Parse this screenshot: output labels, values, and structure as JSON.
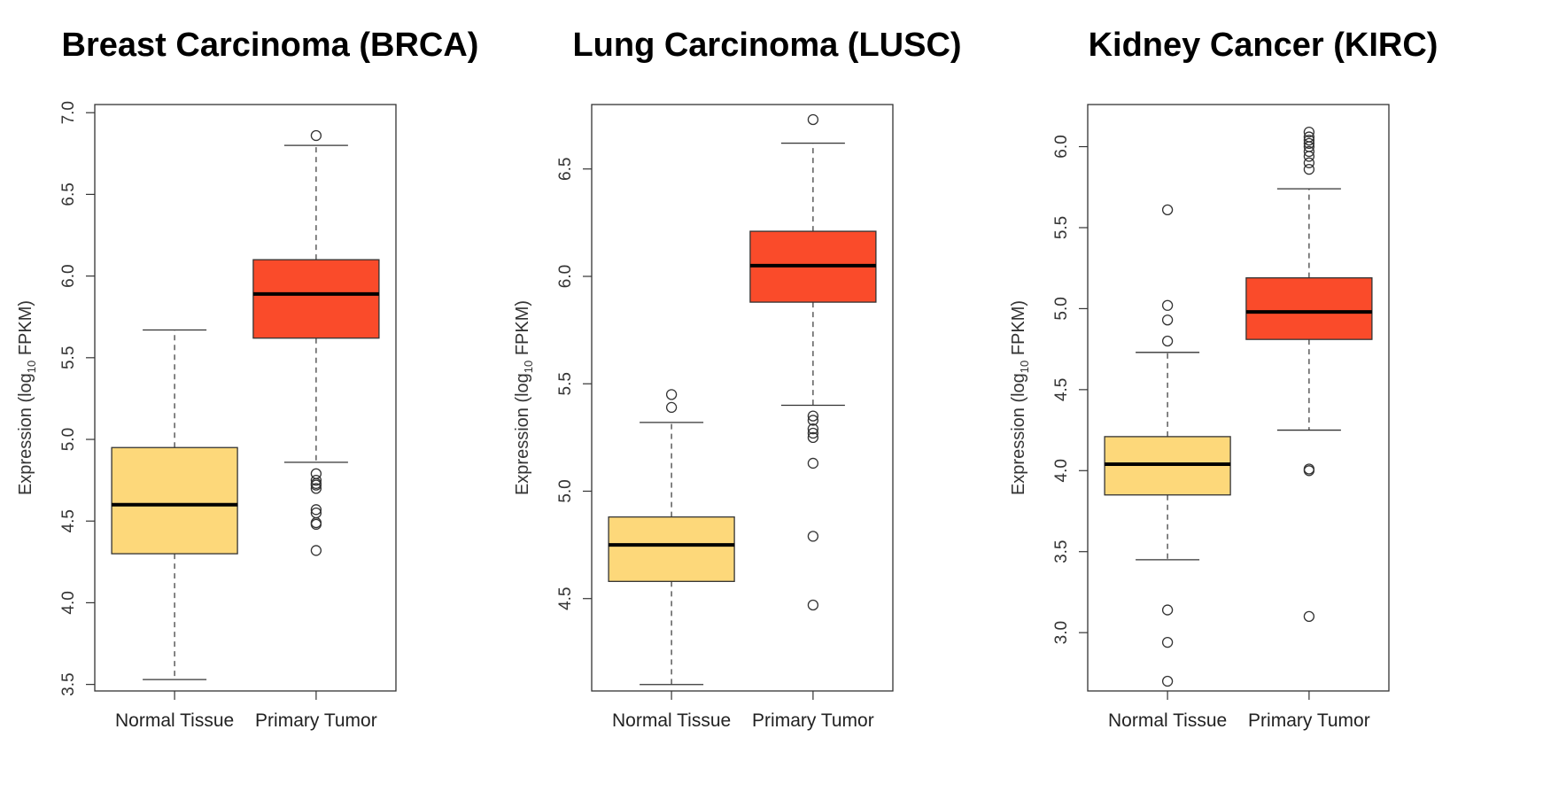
{
  "chart_data": [
    {
      "type": "boxplot",
      "title": "Breast Carcinoma (BRCA)",
      "ylabel_main": "Expression (log",
      "ylabel_sub": "10",
      "ylabel_tail": " FPKM)",
      "categories": [
        "Normal Tissue",
        "Primary Tumor"
      ],
      "ylim": [
        3.46,
        7.05
      ],
      "ticks": [
        3.5,
        4.0,
        4.5,
        5.0,
        5.5,
        6.0,
        6.5,
        7.0
      ],
      "tick_labels": [
        "3.5",
        "4.0",
        "4.5",
        "5.0",
        "5.5",
        "6.0",
        "6.5",
        "7.0"
      ],
      "boxes": [
        {
          "name": "Normal Tissue",
          "whisker_low": 3.53,
          "q1": 4.3,
          "median": 4.6,
          "q3": 4.95,
          "whisker_high": 5.67,
          "outliers": [],
          "color": "#FDD87A"
        },
        {
          "name": "Primary Tumor",
          "whisker_low": 4.86,
          "q1": 5.62,
          "median": 5.89,
          "q3": 6.1,
          "whisker_high": 6.8,
          "outliers": [
            6.86,
            4.79,
            4.75,
            4.73,
            4.72,
            4.7,
            4.57,
            4.55,
            4.49,
            4.48,
            4.32
          ],
          "color": "#FA4B2A"
        }
      ]
    },
    {
      "type": "boxplot",
      "title": "Lung Carcinoma (LUSC)",
      "ylabel_main": "Expression (log",
      "ylabel_sub": "10",
      "ylabel_tail": " FPKM)",
      "categories": [
        "Normal Tissue",
        "Primary Tumor"
      ],
      "ylim": [
        4.07,
        6.8
      ],
      "ticks": [
        4.5,
        5.0,
        5.5,
        6.0,
        6.5
      ],
      "tick_labels": [
        "4.5",
        "5.0",
        "5.5",
        "6.0",
        "6.5"
      ],
      "boxes": [
        {
          "name": "Normal Tissue",
          "whisker_low": 4.1,
          "q1": 4.58,
          "median": 4.75,
          "q3": 4.88,
          "whisker_high": 5.32,
          "outliers": [
            5.45,
            5.39
          ],
          "color": "#FDD87A"
        },
        {
          "name": "Primary Tumor",
          "whisker_low": 5.4,
          "q1": 5.88,
          "median": 6.05,
          "q3": 6.21,
          "whisker_high": 6.62,
          "outliers": [
            6.73,
            5.35,
            5.33,
            5.29,
            5.27,
            5.25,
            5.13,
            4.79,
            4.47
          ],
          "color": "#FA4B2A"
        }
      ]
    },
    {
      "type": "boxplot",
      "title": "Kidney Cancer (KIRC)",
      "ylabel_main": "Expression (log",
      "ylabel_sub": "10",
      "ylabel_tail": " FPKM)",
      "categories": [
        "Normal Tissue",
        "Primary Tumor"
      ],
      "ylim": [
        2.64,
        6.26
      ],
      "ticks": [
        3.0,
        3.5,
        4.0,
        4.5,
        5.0,
        5.5,
        6.0
      ],
      "tick_labels": [
        "3.0",
        "3.5",
        "4.0",
        "4.5",
        "5.0",
        "5.5",
        "6.0"
      ],
      "boxes": [
        {
          "name": "Normal Tissue",
          "whisker_low": 3.45,
          "q1": 3.85,
          "median": 4.04,
          "q3": 4.21,
          "whisker_high": 4.73,
          "outliers": [
            5.61,
            5.02,
            4.93,
            4.8,
            3.14,
            2.94,
            2.7
          ],
          "color": "#FDD87A"
        },
        {
          "name": "Primary Tumor",
          "whisker_low": 4.25,
          "q1": 4.81,
          "median": 4.98,
          "q3": 5.19,
          "whisker_high": 5.74,
          "outliers": [
            6.09,
            6.06,
            6.04,
            6.02,
            6.0,
            5.97,
            5.94,
            5.9,
            5.86,
            4.01,
            4.0,
            3.1
          ],
          "color": "#FA4B2A"
        }
      ]
    }
  ]
}
